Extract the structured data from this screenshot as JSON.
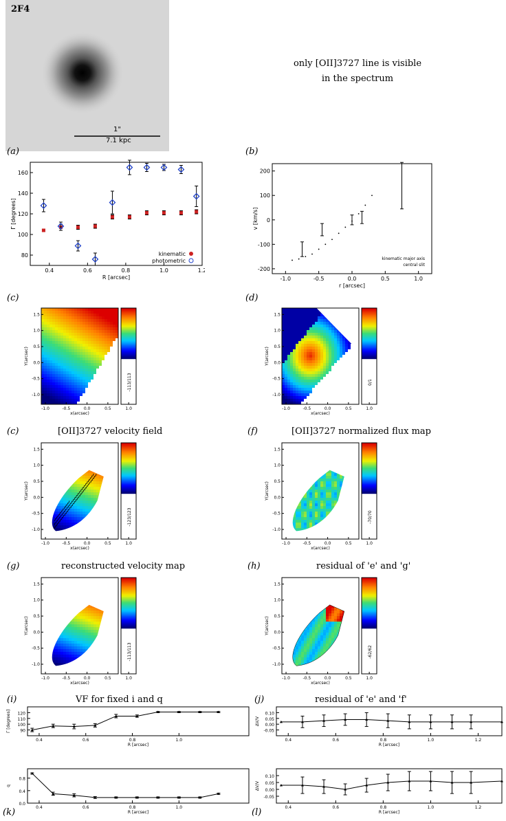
{
  "panel_labels": {
    "a": "(a)",
    "b": "(b)",
    "c1": "(c)",
    "d": "(d)",
    "c2": "(c)",
    "f": "(f)",
    "g": "(g)",
    "h": "(h)",
    "i": "(i)",
    "j": "(j)",
    "k": "(k)",
    "l": "(l)"
  },
  "image": {
    "id_label": "2F4",
    "scale_top": "1\"",
    "scale_bottom": "7.1 kpc"
  },
  "note": {
    "line1": "only [OII]3727 line is visible",
    "line2": "in the spectrum"
  },
  "titles": {
    "c2": "[OII]3727 velocity field",
    "f": "[OII]3727 normalized flux map",
    "g": "reconstructed velocity map",
    "h": "residual of 'e' and 'g'",
    "i": "VF for fixed i and q",
    "j": "residual of 'e' and 'f'"
  },
  "map_axes": {
    "xlabel": "x(arcsec)",
    "ylabel": "Y(arcsec)",
    "xticks": [
      "-1.0",
      "-0.5",
      "0.0",
      "0.5",
      "1.0"
    ],
    "yticks": [
      "1.5",
      "1.0",
      "0.5",
      "0.0",
      "-0.5",
      "-1.0"
    ]
  },
  "colorbar_labels": {
    "c1": "-113/113",
    "d": "0/1",
    "c2": "-123/123",
    "f": "-70/70",
    "g": "-113/113",
    "h": "-62/62"
  },
  "chart_data": [
    {
      "id": "a-left",
      "type": "scatter",
      "xlabel": "R [arcsec]",
      "ylabel": "Γ [degrees]",
      "xlim": [
        0.3,
        1.2
      ],
      "ylim": [
        70,
        170
      ],
      "xticks": [
        "0.4",
        "0.6",
        "0.8",
        "1.0",
        "1.2"
      ],
      "yticks": [
        "80",
        "100",
        "120",
        "140",
        "160"
      ],
      "series": [
        {
          "name": "kinematic",
          "marker": "filled-square",
          "color": "#cc2222",
          "x": [
            0.37,
            0.46,
            0.55,
            0.64,
            0.73,
            0.82,
            0.91,
            1.0,
            1.09,
            1.17
          ],
          "y": [
            104,
            107,
            107,
            108,
            117,
            117,
            121,
            121,
            121,
            122
          ],
          "err": [
            1,
            3,
            2,
            2,
            2,
            2,
            2,
            2,
            2,
            2
          ]
        },
        {
          "name": "photometric",
          "marker": "open-diamond",
          "color": "#2244cc",
          "x": [
            0.37,
            0.46,
            0.55,
            0.64,
            0.73,
            0.82,
            0.91,
            1.0,
            1.09,
            1.17
          ],
          "y": [
            128,
            108,
            89,
            76,
            131,
            165,
            165,
            165,
            163,
            137
          ],
          "err": [
            6,
            4,
            5,
            6,
            11,
            7,
            4,
            3,
            4,
            10
          ]
        }
      ],
      "legend": [
        "kinematic",
        "photometric"
      ]
    },
    {
      "id": "b",
      "type": "line",
      "xlabel": "r [arcsec]",
      "ylabel": "v [km/s]",
      "xlim": [
        -1.2,
        1.2
      ],
      "ylim": [
        -220,
        230
      ],
      "xticks": [
        "-1.0",
        "-0.5",
        "0.0",
        "0.5",
        "1.0"
      ],
      "yticks": [
        "200",
        "100",
        "0",
        "-100",
        "-200"
      ],
      "series": [
        {
          "name": "kinematic major axis",
          "marker": "dot",
          "x": [
            -0.9,
            -0.8,
            -0.7,
            -0.6,
            -0.5,
            -0.4,
            -0.3,
            -0.2,
            -0.1,
            0.0,
            0.1,
            0.2,
            0.3
          ],
          "y": [
            -165,
            -160,
            -150,
            -140,
            -120,
            -100,
            -80,
            -55,
            -30,
            -5,
            25,
            60,
            100
          ]
        },
        {
          "name": "central slit",
          "marker": "errorbar",
          "x": [
            -0.75,
            -0.45,
            0.0,
            0.15,
            0.75
          ],
          "y": [
            -120,
            -40,
            0,
            10,
            140
          ],
          "err": [
            30,
            25,
            20,
            25,
            95
          ]
        }
      ],
      "legend": [
        "kinematic major axis",
        "central slit"
      ]
    },
    {
      "id": "i",
      "type": "line",
      "xlabel": "R [arcsec]",
      "ylabel": "Γ [degrees]",
      "xlim": [
        0.35,
        1.3
      ],
      "ylim": [
        80,
        130
      ],
      "xticks": [
        "0.4",
        "0.6",
        "0.8",
        "1.0"
      ],
      "yticks": [
        "120",
        "110",
        "100",
        "90"
      ],
      "x": [
        0.37,
        0.46,
        0.55,
        0.64,
        0.73,
        0.82,
        0.91,
        1.0,
        1.09,
        1.17
      ],
      "y": [
        90,
        97,
        96,
        98,
        114,
        114,
        121,
        121,
        121,
        121
      ],
      "err": [
        3,
        3,
        4,
        3,
        3,
        2,
        1,
        1,
        1,
        1
      ]
    },
    {
      "id": "j",
      "type": "line",
      "xlabel": "R [arcsec]",
      "ylabel": "ΔV/V",
      "xlim": [
        0.35,
        1.3
      ],
      "ylim": [
        -0.1,
        0.15
      ],
      "xticks": [
        "0.4",
        "0.6",
        "0.8",
        "1.0",
        "1.2"
      ],
      "yticks": [
        "0.10",
        "0.05",
        "0.00",
        "-0.05"
      ],
      "x": [
        0.37,
        0.46,
        0.55,
        0.64,
        0.73,
        0.82,
        0.91,
        1.0,
        1.09,
        1.17,
        1.3
      ],
      "y": [
        0.02,
        0.02,
        0.03,
        0.04,
        0.04,
        0.03,
        0.02,
        0.02,
        0.02,
        0.02,
        0.02
      ],
      "err": [
        0,
        0.05,
        0.05,
        0.05,
        0.06,
        0.06,
        0.06,
        0.06,
        0.06,
        0.06,
        0
      ]
    },
    {
      "id": "k",
      "type": "line",
      "xlabel": "R [arcsec]",
      "ylabel": "q",
      "xlim": [
        0.35,
        1.3
      ],
      "ylim": [
        0,
        1.1
      ],
      "xticks": [
        "0.4",
        "0.6",
        "0.8",
        "1.0"
      ],
      "yticks": [
        "0.8",
        "0.4",
        "0.0"
      ],
      "x": [
        0.37,
        0.46,
        0.55,
        0.64,
        0.73,
        0.82,
        0.91,
        1.0,
        1.09,
        1.17
      ],
      "y": [
        0.95,
        0.3,
        0.25,
        0.18,
        0.18,
        0.18,
        0.18,
        0.18,
        0.18,
        0.3
      ],
      "err": [
        0.02,
        0.05,
        0.05,
        0.03,
        0.02,
        0.02,
        0.02,
        0.02,
        0.02,
        0.02
      ]
    },
    {
      "id": "l",
      "type": "line",
      "xlabel": "R [arcsec]",
      "ylabel": "ΔV/V",
      "xlim": [
        0.35,
        1.3
      ],
      "ylim": [
        -0.1,
        0.15
      ],
      "xticks": [
        "0.4",
        "0.6",
        "0.8",
        "1.0",
        "1.2"
      ],
      "yticks": [
        "0.10",
        "0.05",
        "0.00",
        "-0.05"
      ],
      "x": [
        0.37,
        0.46,
        0.55,
        0.64,
        0.73,
        0.82,
        0.91,
        1.0,
        1.09,
        1.17,
        1.3
      ],
      "y": [
        0.03,
        0.03,
        0.02,
        0.0,
        0.03,
        0.05,
        0.06,
        0.06,
        0.05,
        0.05,
        0.06
      ],
      "err": [
        0,
        0.06,
        0.05,
        0.04,
        0.05,
        0.06,
        0.07,
        0.07,
        0.08,
        0.08,
        0
      ]
    }
  ]
}
